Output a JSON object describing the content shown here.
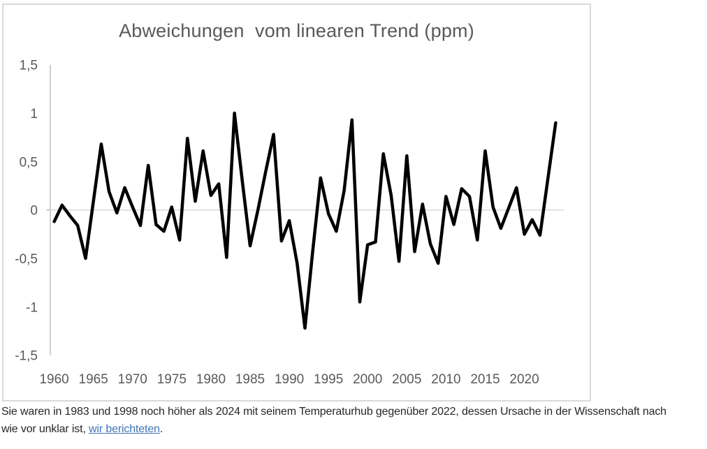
{
  "chart": {
    "title": "Abweichungen  vom linearen Trend (ppm)",
    "colors": {
      "line": "#000000",
      "axis": "#bfbfbf",
      "gridline": "#d9d9d9",
      "border": "#d9d9d9",
      "tick_text": "#595959",
      "title_text": "#595959",
      "background": "#ffffff"
    }
  },
  "chart_data": {
    "type": "line",
    "title": "Abweichungen  vom linearen Trend (ppm)",
    "xlabel": "",
    "ylabel": "",
    "ylim": [
      -1.5,
      1.5
    ],
    "grid": "zero-line-only",
    "legend": "none",
    "ytick_labels": [
      "1,5",
      "1",
      "0,5",
      "0",
      "-0,5",
      "-1",
      "-1,5"
    ],
    "ytick_values": [
      1.5,
      1,
      0.5,
      0,
      -0.5,
      -1,
      -1.5
    ],
    "xtick_years": [
      1960,
      1965,
      1970,
      1975,
      1980,
      1985,
      1990,
      1995,
      2000,
      2005,
      2010,
      2015,
      2020
    ],
    "x": [
      1960,
      1961,
      1962,
      1963,
      1964,
      1965,
      1966,
      1967,
      1968,
      1969,
      1970,
      1971,
      1972,
      1973,
      1974,
      1975,
      1976,
      1977,
      1978,
      1979,
      1980,
      1981,
      1982,
      1983,
      1984,
      1985,
      1986,
      1987,
      1988,
      1989,
      1990,
      1991,
      1992,
      1993,
      1994,
      1995,
      1996,
      1997,
      1998,
      1999,
      2000,
      2001,
      2002,
      2003,
      2004,
      2005,
      2006,
      2007,
      2008,
      2009,
      2010,
      2011,
      2012,
      2013,
      2014,
      2015,
      2016,
      2017,
      2018,
      2019,
      2020,
      2021,
      2022,
      2023,
      2024
    ],
    "values": [
      -0.12,
      0.05,
      -0.06,
      -0.16,
      -0.5,
      0.09,
      0.68,
      0.19,
      -0.03,
      0.23,
      0.03,
      -0.16,
      0.46,
      -0.15,
      -0.22,
      0.03,
      -0.31,
      0.74,
      0.09,
      0.61,
      0.15,
      0.27,
      -0.49,
      1.0,
      0.3,
      -0.37,
      0.0,
      0.4,
      0.78,
      -0.32,
      -0.11,
      -0.55,
      -1.22,
      -0.42,
      0.33,
      -0.04,
      -0.22,
      0.2,
      0.93,
      -0.95,
      -0.36,
      -0.33,
      0.58,
      0.15,
      -0.53,
      0.56,
      -0.43,
      0.06,
      -0.35,
      -0.55,
      0.14,
      -0.15,
      0.22,
      0.14,
      -0.31,
      0.61,
      0.03,
      -0.19,
      0.02,
      0.23,
      -0.25,
      -0.1,
      -0.26,
      0.32,
      0.9
    ]
  },
  "caption": {
    "line1": "Sie waren in 1983 und 1998 noch höher als 2024 mit seinem Temperaturhub gegenüber 2022, dessen Ursache in der Wissenschaft nach",
    "line2_prefix": "wie vor unklar ist, ",
    "link_text": "wir berichteten",
    "line2_suffix": ".",
    "link_color": "#3f76b5",
    "text_color": "#262626"
  }
}
